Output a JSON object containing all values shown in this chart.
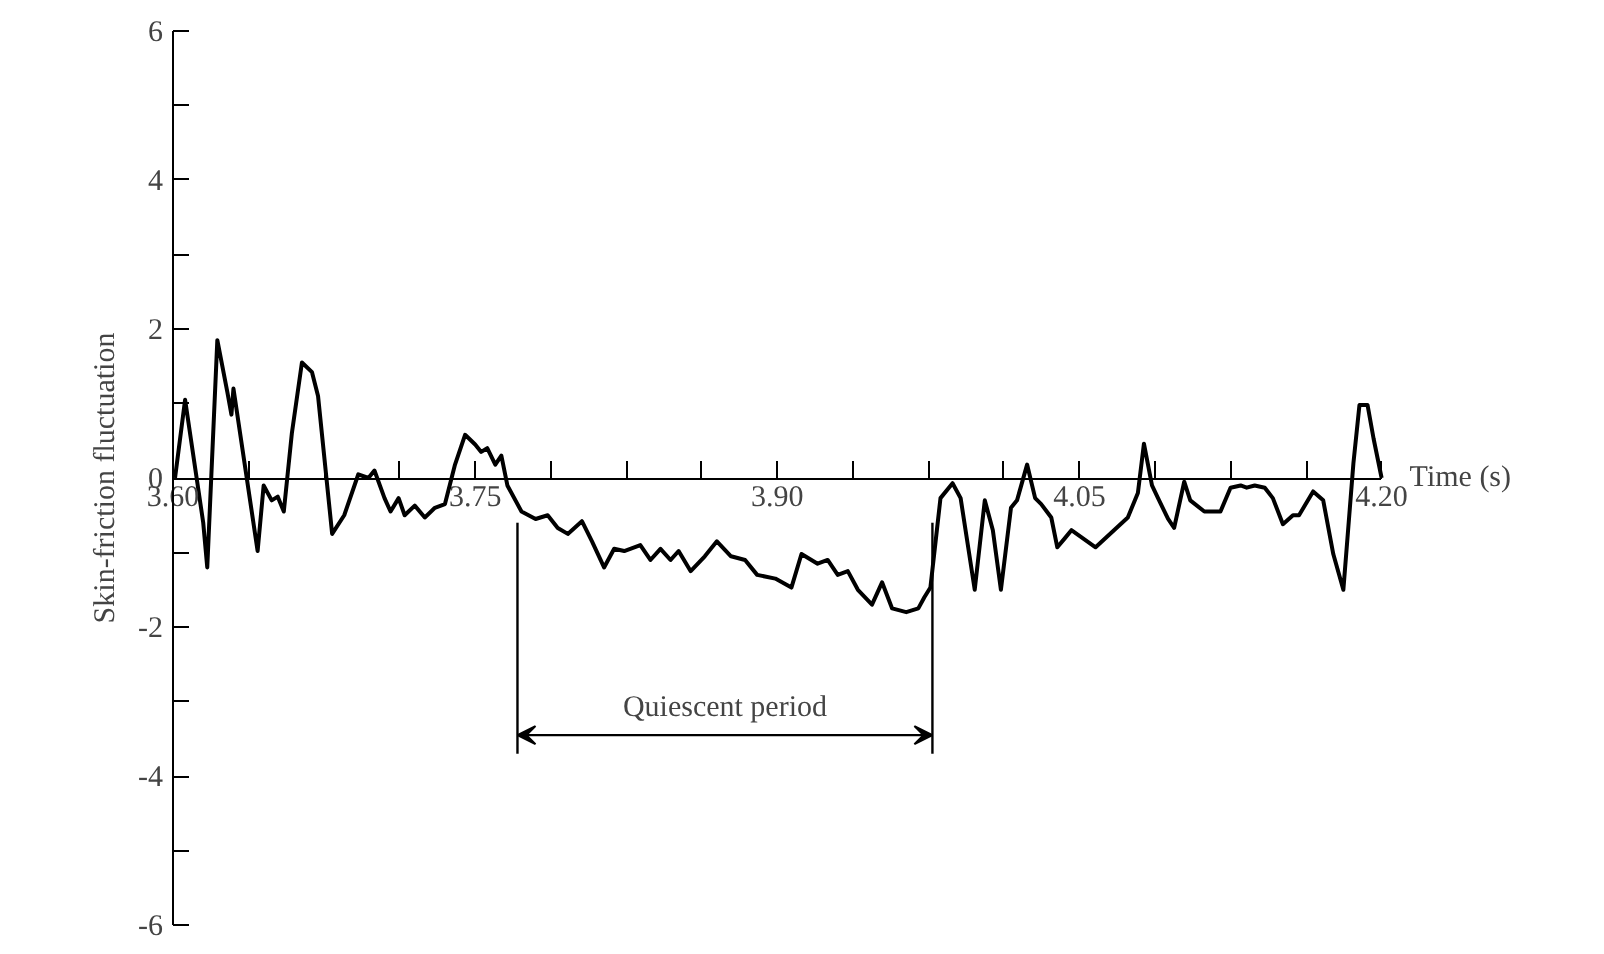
{
  "chart_data": {
    "type": "line",
    "xlabel": "Time (s)",
    "ylabel": "Skin-friction fluctuation",
    "xlim": [
      3.6,
      4.2
    ],
    "ylim": [
      -6,
      6
    ],
    "xticks": [
      {
        "value": 3.6,
        "label": "3.60"
      },
      {
        "value": 3.6375,
        "label": null
      },
      {
        "value": 3.675,
        "label": null
      },
      {
        "value": 3.7125,
        "label": null
      },
      {
        "value": 3.75,
        "label": "3.75"
      },
      {
        "value": 3.7875,
        "label": null
      },
      {
        "value": 3.825,
        "label": null
      },
      {
        "value": 3.8625,
        "label": null
      },
      {
        "value": 3.9,
        "label": "3.90"
      },
      {
        "value": 3.9375,
        "label": null
      },
      {
        "value": 3.975,
        "label": null
      },
      {
        "value": 4.0125,
        "label": null
      },
      {
        "value": 4.05,
        "label": "4.05"
      },
      {
        "value": 4.0875,
        "label": null
      },
      {
        "value": 4.125,
        "label": null
      },
      {
        "value": 4.1625,
        "label": null
      },
      {
        "value": 4.2,
        "label": "4.20"
      }
    ],
    "yticks": [
      -6,
      {
        "value": -5,
        "label": null
      },
      -4,
      {
        "value": -3,
        "label": null
      },
      -2,
      {
        "value": -1,
        "label": null
      },
      0,
      {
        "value": 1,
        "label": null
      },
      2,
      {
        "value": 3,
        "label": null
      },
      4,
      {
        "value": 5,
        "label": null
      },
      6
    ],
    "grid": false,
    "marker": "none",
    "line_style": "solid",
    "ref_lines": [
      {
        "axis": "x",
        "value": 3.771,
        "color": "#000000"
      },
      {
        "axis": "x",
        "value": 3.977,
        "color": "#000000"
      }
    ],
    "annotations": [
      "Quiescent period"
    ],
    "series": [
      {
        "color": "#000000",
        "x": [
          3.601,
          3.606,
          3.612,
          3.615,
          3.617,
          3.622,
          3.627,
          3.629,
          3.63,
          3.642,
          3.645,
          3.649,
          3.652,
          3.655,
          3.659,
          3.664,
          3.669,
          3.672,
          3.679,
          3.685,
          3.692,
          3.697,
          3.7,
          3.705,
          3.708,
          3.712,
          3.715,
          3.72,
          3.725,
          3.73,
          3.735,
          3.74,
          3.745,
          3.75,
          3.753,
          3.756,
          3.76,
          3.763,
          3.766,
          3.773,
          3.78,
          3.786,
          3.791,
          3.796,
          3.803,
          3.808,
          3.814,
          3.819,
          3.824,
          3.832,
          3.837,
          3.842,
          3.847,
          3.851,
          3.857,
          3.864,
          3.87,
          3.877,
          3.884,
          3.89,
          3.899,
          3.907,
          3.912,
          3.92,
          3.925,
          3.93,
          3.935,
          3.94,
          3.947,
          3.952,
          3.957,
          3.964,
          3.97,
          3.973,
          3.976,
          3.981,
          3.987,
          3.991,
          3.998,
          4.003,
          4.007,
          4.011,
          4.016,
          4.019,
          4.024,
          4.028,
          4.031,
          4.036,
          4.039,
          4.043,
          4.046,
          4.058,
          4.074,
          4.079,
          4.082,
          4.086,
          4.089,
          4.094,
          4.097,
          4.102,
          4.105,
          4.112,
          4.12,
          4.125,
          4.13,
          4.133,
          4.137,
          4.142,
          4.146,
          4.151,
          4.156,
          4.159,
          4.166,
          4.171,
          4.176,
          4.181,
          4.186,
          4.189,
          4.193,
          4.196,
          4.2
        ],
        "values": [
          0,
          1.05,
          -0.05,
          -0.6,
          -1.2,
          1.85,
          1.15,
          0.85,
          1.2,
          -0.98,
          -0.1,
          -0.3,
          -0.25,
          -0.45,
          0.6,
          1.55,
          1.42,
          1.1,
          -0.75,
          -0.5,
          0.05,
          0.0,
          0.1,
          -0.27,
          -0.45,
          -0.27,
          -0.5,
          -0.37,
          -0.53,
          -0.4,
          -0.35,
          0.18,
          0.58,
          0.45,
          0.35,
          0.4,
          0.18,
          0.3,
          -0.1,
          -0.45,
          -0.55,
          -0.5,
          -0.67,
          -0.75,
          -0.58,
          -0.85,
          -1.2,
          -0.95,
          -0.98,
          -0.9,
          -1.1,
          -0.95,
          -1.1,
          -0.98,
          -1.25,
          -1.05,
          -0.85,
          -1.05,
          -1.1,
          -1.3,
          -1.35,
          -1.47,
          -1.02,
          -1.15,
          -1.1,
          -1.3,
          -1.25,
          -1.5,
          -1.7,
          -1.4,
          -1.75,
          -1.8,
          -1.75,
          -1.6,
          -1.47,
          -0.27,
          -0.07,
          -0.27,
          -1.5,
          -0.3,
          -0.7,
          -1.5,
          -0.4,
          -0.3,
          0.18,
          -0.27,
          -0.35,
          -0.53,
          -0.93,
          -0.8,
          -0.7,
          -0.93,
          -0.53,
          -0.2,
          0.46,
          -0.1,
          -0.27,
          -0.55,
          -0.67,
          -0.05,
          -0.3,
          -0.45,
          -0.45,
          -0.13,
          -0.1,
          -0.13,
          -0.1,
          -0.13,
          -0.27,
          -0.62,
          -0.5,
          -0.5,
          -0.18,
          -0.3,
          -1.02,
          -1.5,
          0.2,
          0.98,
          0.98,
          0.53,
          0
        ]
      }
    ]
  }
}
